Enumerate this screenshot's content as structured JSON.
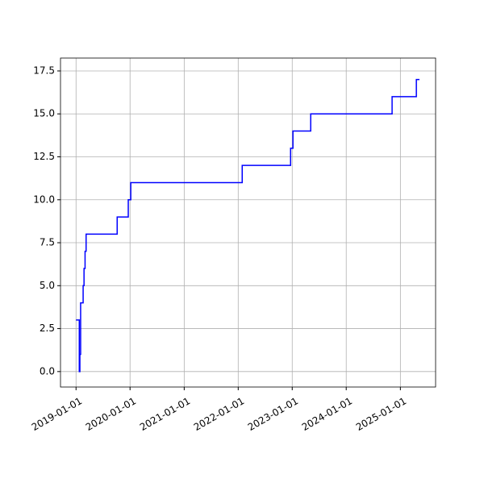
{
  "chart_data": {
    "type": "step",
    "x": [
      "2019-01-01",
      "2019-01-23",
      "2019-01-27",
      "2019-02-01",
      "2019-02-18",
      "2019-02-24",
      "2019-03-03",
      "2019-03-10",
      "2019-10-06",
      "2019-12-20",
      "2020-01-06",
      "2022-01-28",
      "2022-12-21",
      "2023-01-06",
      "2023-05-06",
      "2024-11-06",
      "2025-04-19",
      "2025-05-10"
    ],
    "values": [
      3,
      0,
      1,
      4,
      5,
      6,
      7,
      8,
      9,
      10,
      11,
      12,
      13,
      14,
      15,
      16,
      17,
      17
    ],
    "color": "#0000ff",
    "xlim": [
      "2018-09-18",
      "2025-08-27"
    ],
    "xticks": [
      "2019-01-01",
      "2020-01-01",
      "2021-01-01",
      "2022-01-01",
      "2023-01-01",
      "2024-01-01",
      "2025-01-01"
    ],
    "ylim": [
      -0.9,
      18.25
    ],
    "yticks": [
      {
        "value": 0,
        "label": "0.0"
      },
      2.5,
      {
        "value": 5,
        "label": "5.0"
      },
      7.5,
      {
        "value": 10,
        "label": "10.0"
      },
      12.5,
      {
        "value": 15,
        "label": "15.0"
      },
      17.5
    ],
    "grid": true
  }
}
